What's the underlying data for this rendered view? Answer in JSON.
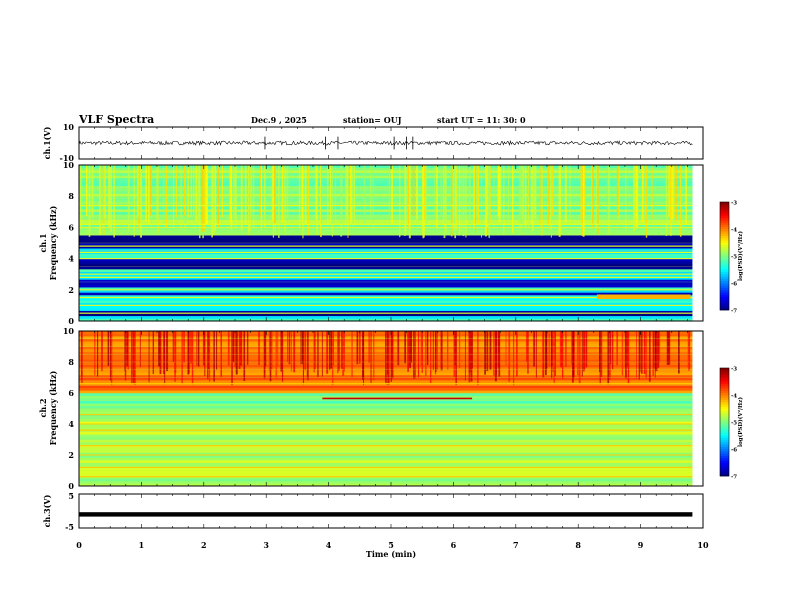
{
  "header": {
    "title": "VLF Spectra",
    "date": "Dec.9 , 2025",
    "station": "station= OUJ",
    "start": "start  UT  =   11: 30: 0"
  },
  "chart_data": {
    "type": "heatmap",
    "x_axis": {
      "label": "Time  (min)",
      "range": [
        0,
        10
      ],
      "ticks": [
        "0",
        "1",
        "2",
        "3",
        "4",
        "5",
        "6",
        "7",
        "8",
        "9",
        "10"
      ],
      "data_end_min": 9.83
    },
    "panels": [
      {
        "id": "ch1-waveform",
        "type": "line",
        "ylabel": "ch.1(V)",
        "ylim": [
          -10,
          10
        ],
        "tick_labels": [
          "10",
          "-10"
        ],
        "trace_level": 0,
        "trace_spread": 1.2,
        "spike_times_min": [
          2.98,
          3.95,
          4.15,
          5.05,
          5.25,
          5.35
        ]
      },
      {
        "id": "ch1-spectrogram",
        "type": "heatmap",
        "ylabel_line1": "ch.1",
        "ylabel_line2": "Frequency (kHz)",
        "ylim": [
          0,
          10
        ],
        "tick_labels": [
          "0",
          "2",
          "4",
          "6",
          "8",
          "10"
        ],
        "colorbar": {
          "label": "log(PSD)(V²/Hz)",
          "range": [
            -7,
            -3
          ],
          "tick_labels": [
            "-3",
            "-4",
            "-5",
            "-6",
            "-7"
          ]
        },
        "background_log_psd": -5.4,
        "dark_bands_khz": [
          [
            0.3,
            0.5
          ],
          [
            1.6,
            1.8
          ],
          [
            2.1,
            2.5
          ],
          [
            3.3,
            3.9
          ],
          [
            4.6,
            5.4
          ]
        ],
        "line_freqs_khz": [
          0.5,
          1.0,
          1.5,
          2.0,
          2.8,
          3.0,
          4.0,
          4.4,
          4.8,
          6.0,
          6.2,
          7.4
        ],
        "intense_band": {
          "freq_khz": 1.55,
          "time_min": [
            8.3,
            9.8
          ],
          "log_psd": -4.2
        },
        "whistler_band_khz": [
          5.3,
          10
        ]
      },
      {
        "id": "ch2-spectrogram",
        "type": "heatmap",
        "ylabel_line1": "ch.2",
        "ylabel_line2": "Frequency (kHz)",
        "ylim": [
          0,
          10
        ],
        "tick_labels": [
          "0",
          "2",
          "4",
          "6",
          "8",
          "10"
        ],
        "colorbar": {
          "label": "log(PSD)(V²/Hz)",
          "range": [
            -7,
            -3
          ],
          "tick_labels": [
            "-3",
            "-4",
            "-5",
            "-6",
            "-7"
          ]
        },
        "background_log_psd": -4.8,
        "high_freq_log_psd": -4.0,
        "line_freqs_khz": [
          0.6,
          1.2,
          2.0,
          2.6,
          3.6,
          4.0,
          4.6,
          6.6
        ],
        "feature_freq_khz": 5.5
      },
      {
        "id": "ch3-waveform",
        "type": "line",
        "ylabel": "ch.3(V)",
        "ylim": [
          -5,
          5
        ],
        "tick_labels": [
          "5",
          "-5"
        ],
        "trace_level": -1
      }
    ]
  }
}
